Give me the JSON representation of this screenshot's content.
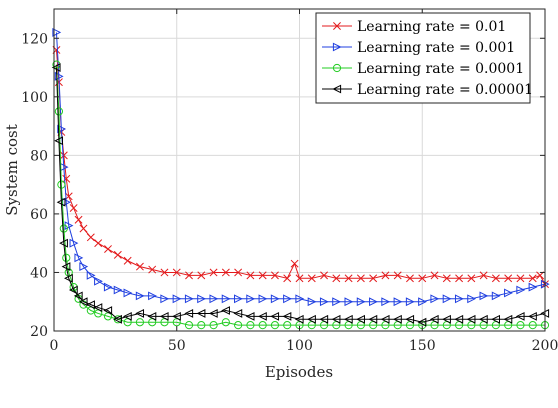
{
  "chart_data": {
    "type": "line",
    "title": "",
    "xlabel": "Episodes",
    "ylabel": "System cost",
    "xlim": [
      0,
      200
    ],
    "ylim": [
      20,
      130
    ],
    "xticks": [
      "0",
      "50",
      "100",
      "150",
      "200"
    ],
    "yticks": [
      "20",
      "40",
      "60",
      "80",
      "100",
      "120"
    ],
    "grid": true,
    "legend_position": "top-right",
    "series": [
      {
        "name": "Learning rate = 0.01",
        "color": "#e31a1c",
        "marker": "x",
        "x": [
          1,
          2,
          3,
          4,
          5,
          6,
          8,
          10,
          12,
          15,
          18,
          22,
          26,
          30,
          35,
          40,
          45,
          50,
          55,
          60,
          65,
          70,
          75,
          80,
          85,
          90,
          95,
          98,
          100,
          105,
          110,
          115,
          120,
          125,
          130,
          135,
          140,
          145,
          150,
          155,
          160,
          165,
          170,
          175,
          180,
          185,
          190,
          195,
          198,
          200
        ],
        "y": [
          116,
          105,
          88,
          80,
          72,
          66,
          62,
          58,
          55,
          52,
          50,
          48,
          46,
          44,
          42,
          41,
          40,
          40,
          39,
          39,
          40,
          40,
          40,
          39,
          39,
          39,
          38,
          43,
          38,
          38,
          39,
          38,
          38,
          38,
          38,
          39,
          39,
          38,
          38,
          39,
          38,
          38,
          38,
          39,
          38,
          38,
          38,
          38,
          39,
          36
        ]
      },
      {
        "name": "Learning rate = 0.001",
        "color": "#1f3fe0",
        "marker": "triangle-right",
        "x": [
          1,
          2,
          3,
          4,
          5,
          6,
          8,
          10,
          12,
          15,
          18,
          22,
          26,
          30,
          35,
          40,
          45,
          50,
          55,
          60,
          65,
          70,
          75,
          80,
          85,
          90,
          95,
          100,
          105,
          110,
          115,
          120,
          125,
          130,
          135,
          140,
          145,
          150,
          155,
          160,
          165,
          170,
          175,
          180,
          185,
          190,
          195,
          200
        ],
        "y": [
          122,
          107,
          89,
          76,
          64,
          56,
          50,
          45,
          42,
          39,
          37,
          35,
          34,
          33,
          32,
          32,
          31,
          31,
          31,
          31,
          31,
          31,
          31,
          31,
          31,
          31,
          31,
          31,
          30,
          30,
          30,
          30,
          30,
          30,
          30,
          30,
          30,
          30,
          31,
          31,
          31,
          31,
          32,
          32,
          33,
          34,
          35,
          36
        ]
      },
      {
        "name": "Learning rate = 0.0001",
        "color": "#22cc22",
        "marker": "circle",
        "x": [
          1,
          2,
          3,
          4,
          5,
          6,
          8,
          10,
          12,
          15,
          18,
          22,
          26,
          30,
          35,
          40,
          45,
          50,
          55,
          60,
          65,
          70,
          75,
          80,
          85,
          90,
          95,
          100,
          105,
          110,
          115,
          120,
          125,
          130,
          135,
          140,
          145,
          150,
          155,
          160,
          165,
          170,
          175,
          180,
          185,
          190,
          195,
          200
        ],
        "y": [
          111,
          95,
          70,
          55,
          45,
          40,
          35,
          31,
          29,
          27,
          26,
          25,
          24,
          23,
          23,
          23,
          23,
          23,
          22,
          22,
          22,
          23,
          22,
          22,
          22,
          22,
          22,
          22,
          22,
          22,
          22,
          22,
          22,
          22,
          22,
          22,
          22,
          22,
          22,
          22,
          22,
          22,
          22,
          22,
          22,
          22,
          22,
          22
        ]
      },
      {
        "name": "Learning rate = 0.00001",
        "color": "#000000",
        "marker": "triangle-left",
        "x": [
          1,
          2,
          3,
          4,
          5,
          6,
          8,
          10,
          12,
          15,
          18,
          22,
          26,
          30,
          35,
          40,
          45,
          50,
          55,
          60,
          65,
          70,
          75,
          80,
          85,
          90,
          95,
          100,
          105,
          110,
          115,
          120,
          125,
          130,
          135,
          140,
          145,
          150,
          155,
          160,
          165,
          170,
          175,
          180,
          185,
          190,
          195,
          200
        ],
        "y": [
          110,
          85,
          64,
          50,
          42,
          38,
          34,
          32,
          30,
          29,
          28,
          27,
          24,
          25,
          26,
          25,
          25,
          25,
          26,
          26,
          26,
          27,
          26,
          25,
          25,
          25,
          25,
          24,
          24,
          24,
          24,
          24,
          24,
          24,
          24,
          24,
          24,
          23,
          24,
          24,
          24,
          24,
          24,
          24,
          24,
          25,
          25,
          26
        ]
      }
    ]
  }
}
